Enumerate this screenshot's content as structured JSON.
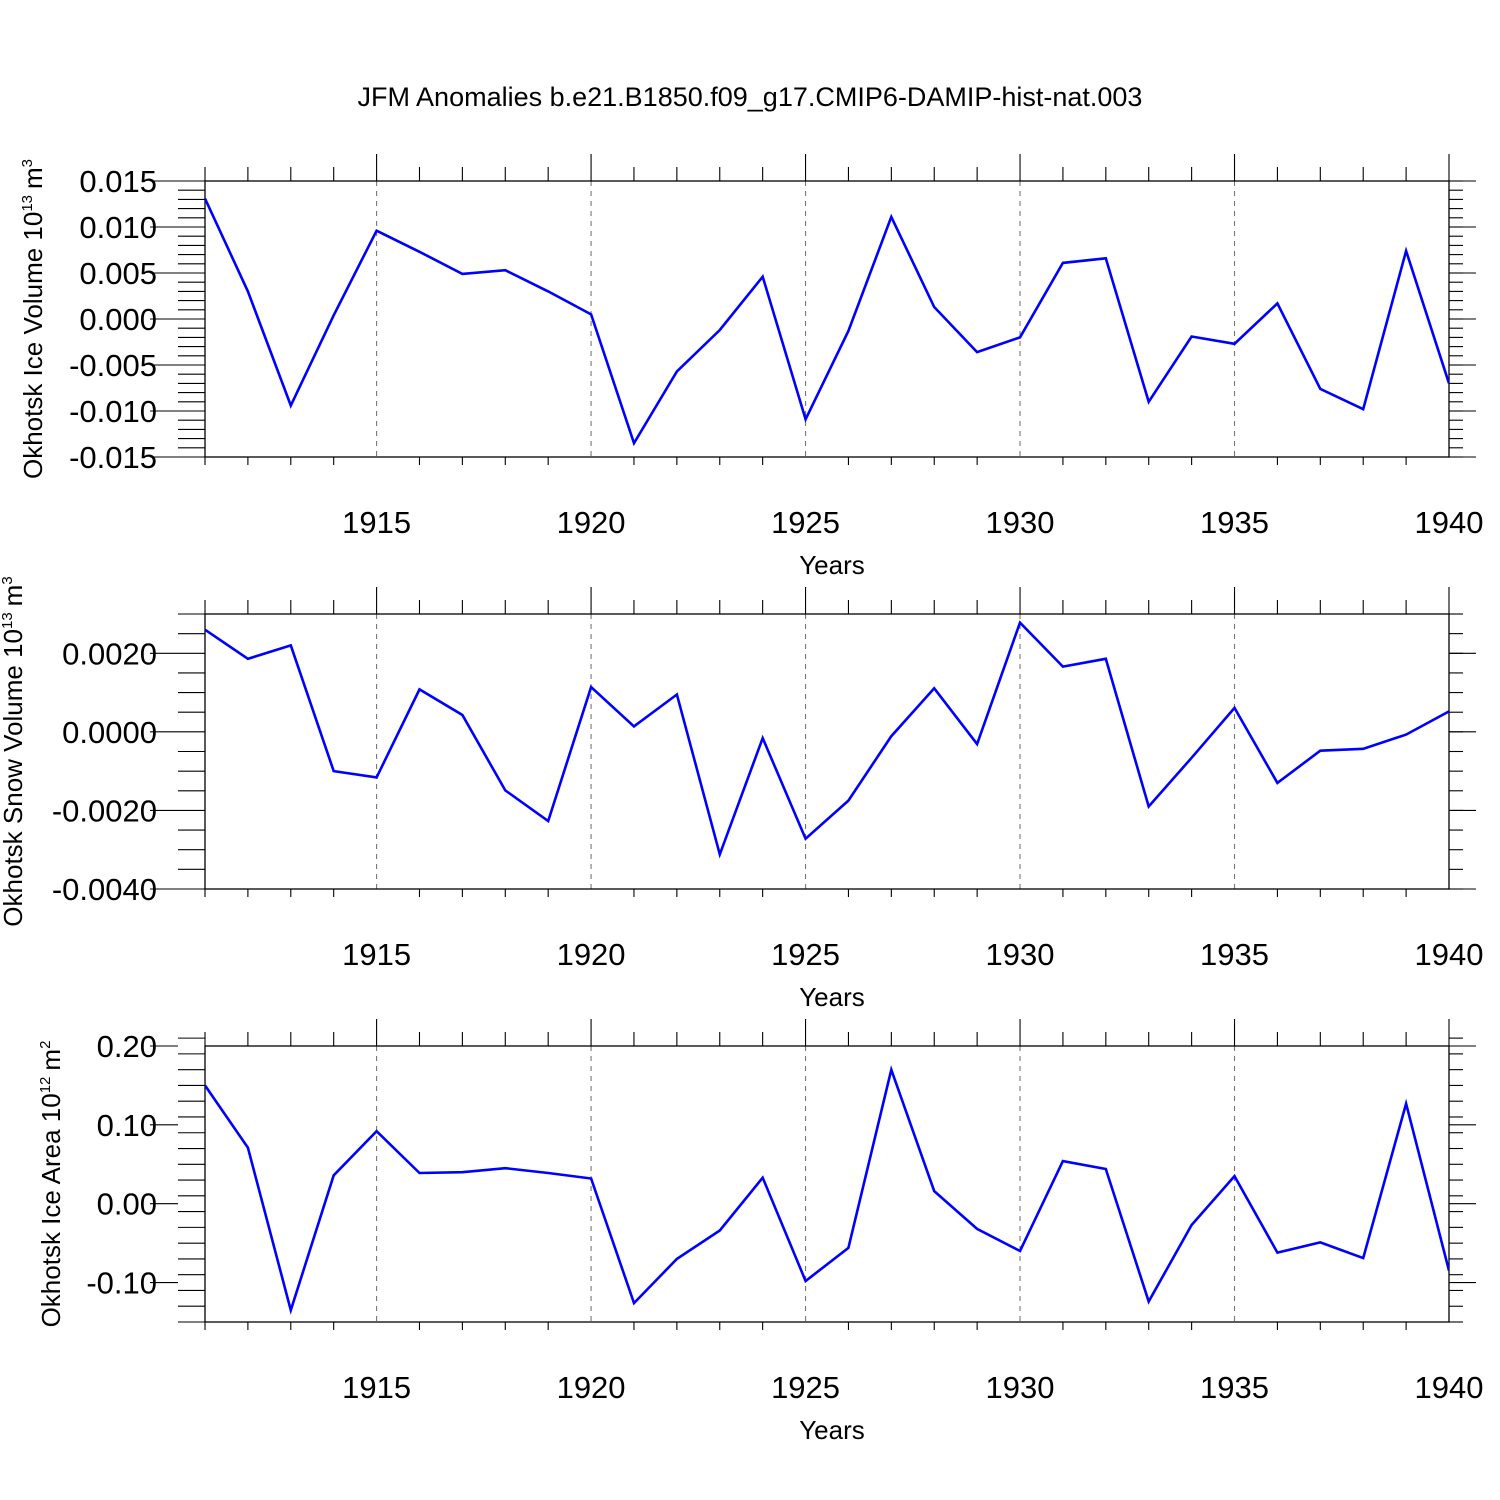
{
  "title": "JFM Anomalies b.e21.B1850.f09_g17.CMIP6-DAMIP-hist-nat.003",
  "chart_data": [
    {
      "type": "line",
      "xlabel": "Years",
      "ylabel_text": "Okhotsk Ice Volume 10",
      "ylabel_exp": "13",
      "ylabel_unit": "m",
      "ylabel_unit_exp": "3",
      "xlim": [
        1911,
        1940
      ],
      "ylim": [
        -0.015,
        0.015
      ],
      "grid": "vertical dashed at major x ticks",
      "x_major_ticks": [
        1915,
        1920,
        1925,
        1930,
        1935,
        1940
      ],
      "x_tick_labels": [
        "1915",
        "1920",
        "1925",
        "1930",
        "1935",
        "1940"
      ],
      "y_major_ticks": [
        -0.015,
        -0.01,
        -0.005,
        0.0,
        0.005,
        0.01,
        0.015
      ],
      "y_tick_labels": [
        "-0.015",
        "-0.010",
        "-0.005",
        "0.000",
        "0.005",
        "0.010",
        "0.015"
      ],
      "y_minor_step": 0.001,
      "x": [
        1911,
        1912,
        1913,
        1914,
        1915,
        1916,
        1917,
        1918,
        1919,
        1920,
        1921,
        1922,
        1923,
        1924,
        1925,
        1926,
        1927,
        1928,
        1929,
        1930,
        1931,
        1932,
        1933,
        1934,
        1935,
        1936,
        1937,
        1938,
        1939,
        1940
      ],
      "values": [
        0.0131,
        0.003,
        -0.0094,
        0.0004,
        0.0096,
        0.0073,
        0.0049,
        0.0053,
        0.003,
        0.0005,
        -0.0135,
        -0.0057,
        -0.0012,
        0.0046,
        -0.0109,
        -0.0013,
        0.0111,
        0.0013,
        -0.0036,
        -0.002,
        0.0061,
        0.0066,
        -0.009,
        -0.0019,
        -0.0027,
        0.0017,
        -0.0076,
        -0.0098,
        0.0074,
        -0.007
      ]
    },
    {
      "type": "line",
      "xlabel": "Years",
      "ylabel_text": "Okhotsk Snow Volume 10",
      "ylabel_exp": "13",
      "ylabel_unit": "m",
      "ylabel_unit_exp": "3",
      "xlim": [
        1911,
        1940
      ],
      "ylim": [
        -0.004,
        0.003
      ],
      "grid": "vertical dashed at major x ticks",
      "x_major_ticks": [
        1915,
        1920,
        1925,
        1930,
        1935,
        1940
      ],
      "x_tick_labels": [
        "1915",
        "1920",
        "1925",
        "1930",
        "1935",
        "1940"
      ],
      "y_major_ticks": [
        -0.004,
        -0.002,
        0.0,
        0.002
      ],
      "y_tick_labels": [
        "-0.0040",
        "-0.0020",
        "0.0000",
        "0.0020"
      ],
      "y_minor_step": 0.0005,
      "x": [
        1911,
        1912,
        1913,
        1914,
        1915,
        1916,
        1917,
        1918,
        1919,
        1920,
        1921,
        1922,
        1923,
        1924,
        1925,
        1926,
        1927,
        1928,
        1929,
        1930,
        1931,
        1932,
        1933,
        1934,
        1935,
        1936,
        1937,
        1938,
        1939,
        1940
      ],
      "values": [
        0.0026,
        0.00186,
        0.0022,
        -0.001,
        -0.00116,
        0.00108,
        0.00043,
        -0.00149,
        -0.00227,
        0.00114,
        0.00014,
        0.00095,
        -0.00312,
        -0.00016,
        -0.00272,
        -0.00175,
        -0.00011,
        0.00111,
        -0.00031,
        0.00278,
        0.00166,
        0.00186,
        -0.0019,
        -0.00066,
        0.00061,
        -0.0013,
        -0.00048,
        -0.00043,
        -7e-05,
        0.00052
      ]
    },
    {
      "type": "line",
      "xlabel": "Years",
      "ylabel_text": "Okhotsk Ice Area 10",
      "ylabel_exp": "12",
      "ylabel_unit": "m",
      "ylabel_unit_exp": "2",
      "xlim": [
        1911,
        1940
      ],
      "ylim": [
        -0.15,
        0.2
      ],
      "grid": "vertical dashed at major x ticks",
      "x_major_ticks": [
        1915,
        1920,
        1925,
        1930,
        1935,
        1940
      ],
      "x_tick_labels": [
        "1915",
        "1920",
        "1925",
        "1930",
        "1935",
        "1940"
      ],
      "y_major_ticks": [
        -0.1,
        0.0,
        0.1,
        0.2
      ],
      "y_tick_labels": [
        "-0.10",
        "0.00",
        "0.10",
        "0.20"
      ],
      "y_minor_step": 0.02,
      "x": [
        1911,
        1912,
        1913,
        1914,
        1915,
        1916,
        1917,
        1918,
        1919,
        1920,
        1921,
        1922,
        1923,
        1924,
        1925,
        1926,
        1927,
        1928,
        1929,
        1930,
        1931,
        1932,
        1933,
        1934,
        1935,
        1936,
        1937,
        1938,
        1939,
        1940
      ],
      "values": [
        0.15,
        0.071,
        -0.135,
        0.036,
        0.092,
        0.039,
        0.04,
        0.045,
        0.039,
        0.032,
        -0.126,
        -0.07,
        -0.034,
        0.033,
        -0.098,
        -0.056,
        0.17,
        0.016,
        -0.032,
        -0.06,
        0.054,
        0.044,
        -0.124,
        -0.027,
        0.035,
        -0.062,
        -0.049,
        -0.069,
        0.127,
        -0.085
      ]
    }
  ]
}
